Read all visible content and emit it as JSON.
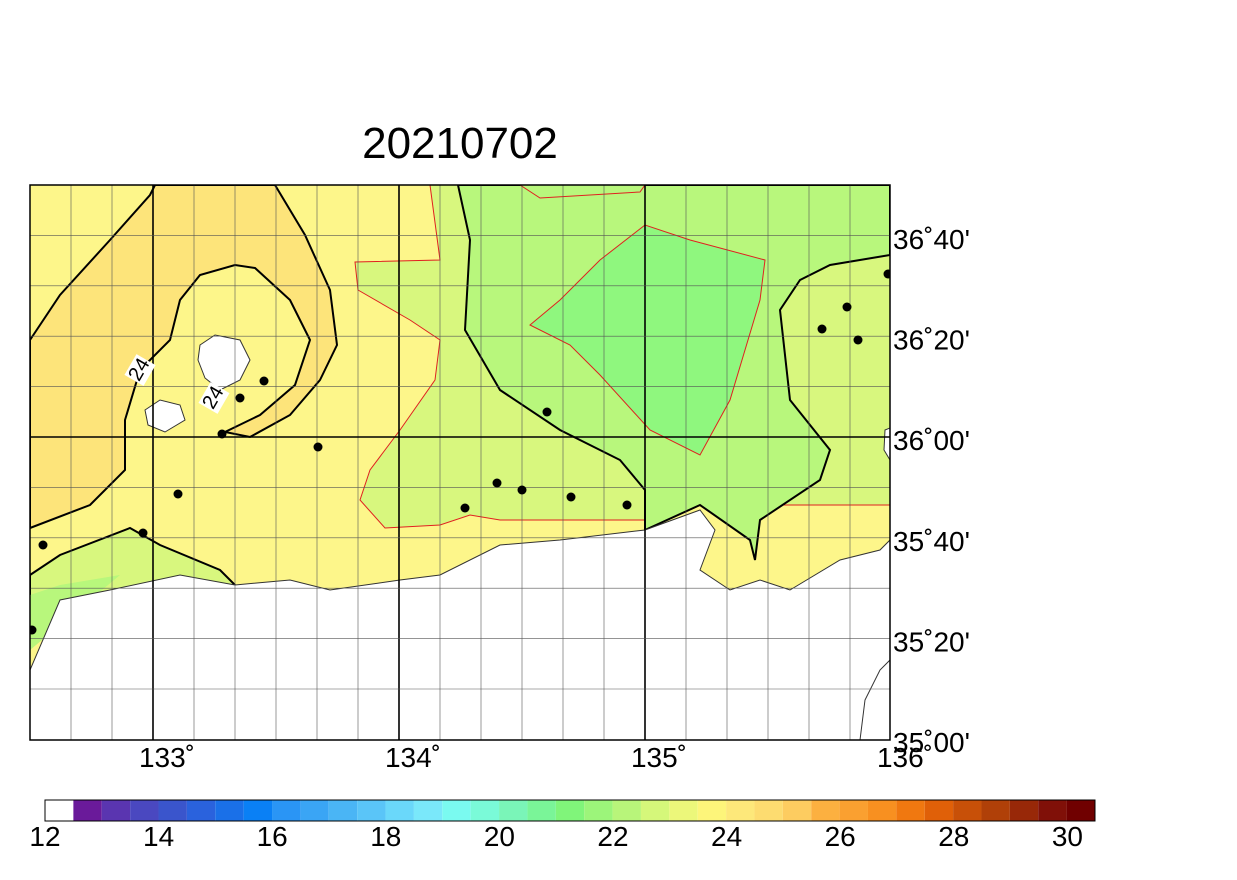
{
  "title": "20210702",
  "map": {
    "longitude_labels": [
      "133˚",
      "134˚",
      "135˚",
      "136˚"
    ],
    "latitude_labels": [
      "36˚40'",
      "36˚20'",
      "36˚00'",
      "35˚40'",
      "35˚20'",
      "35˚00'"
    ],
    "contour_labels": [
      "24",
      "24"
    ]
  },
  "colorbar": {
    "labels": [
      "12",
      "14",
      "16",
      "18",
      "20",
      "22",
      "24",
      "26",
      "28",
      "30"
    ]
  }
}
